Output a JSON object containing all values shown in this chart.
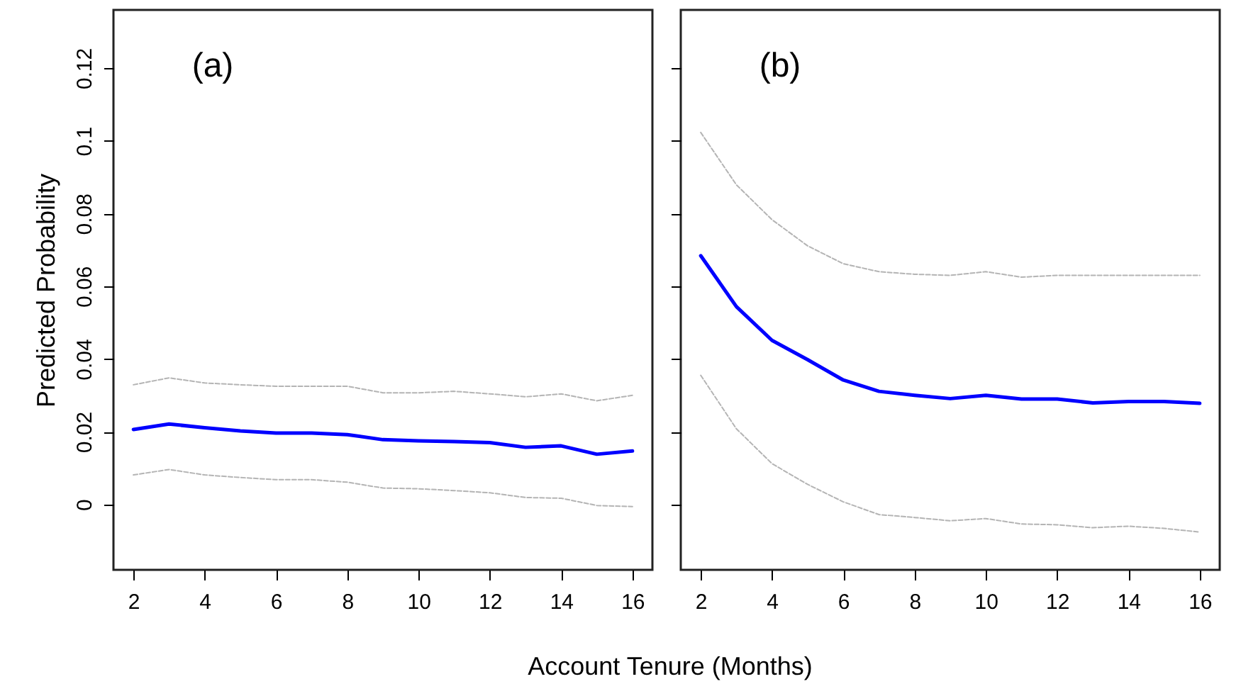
{
  "chart_data": [
    {
      "type": "line",
      "ylabel": "Predicted Probability",
      "xlabel": "Account Tenure (Months)",
      "annotations": [
        "(a)"
      ],
      "x": [
        2,
        3,
        4,
        5,
        6,
        7,
        8,
        9,
        10,
        11,
        12,
        13,
        14,
        15,
        16
      ],
      "xlim": [
        1.44,
        16.56
      ],
      "xticks": [
        2,
        4,
        6,
        8,
        10,
        12,
        14,
        16
      ],
      "ylim": [
        -0.018,
        0.136
      ],
      "yticks": [
        0,
        0.02,
        0.04,
        0.06,
        0.08,
        0.1,
        0.12
      ],
      "grid": false,
      "marker": "none",
      "series": [
        {
          "color": "#0000ff",
          "line_style": "solid",
          "values": [
            0.0206,
            0.0221,
            0.0211,
            0.0202,
            0.0196,
            0.0196,
            0.0192,
            0.0178,
            0.0175,
            0.0173,
            0.017,
            0.0157,
            0.0161,
            0.0138,
            0.0147
          ]
        },
        {
          "color": "#b4b4b4",
          "line_style": "dashed",
          "values": [
            0.0329,
            0.0348,
            0.0334,
            0.0329,
            0.0325,
            0.0325,
            0.0325,
            0.0307,
            0.0307,
            0.0311,
            0.0304,
            0.0296,
            0.0304,
            0.0285,
            0.03
          ]
        },
        {
          "color": "#b4b4b4",
          "line_style": "dashed",
          "values": [
            0.0081,
            0.0096,
            0.0081,
            0.0074,
            0.0068,
            0.0068,
            0.0061,
            0.0045,
            0.0043,
            0.0038,
            0.0032,
            0.0019,
            0.0017,
            -0.0003,
            -0.0006
          ]
        }
      ]
    },
    {
      "type": "line",
      "annotations": [
        "(b)"
      ],
      "x": [
        2,
        3,
        4,
        5,
        6,
        7,
        8,
        9,
        10,
        11,
        12,
        13,
        14,
        15,
        16
      ],
      "xlim": [
        1.44,
        16.56
      ],
      "xticks": [
        2,
        4,
        6,
        8,
        10,
        12,
        14,
        16
      ],
      "ylim": [
        -0.018,
        0.136
      ],
      "yticks": [
        0,
        0.02,
        0.04,
        0.06,
        0.08,
        0.1,
        0.12
      ],
      "tick_labels": "x",
      "grid": false,
      "marker": "none",
      "series": [
        {
          "color": "#0000ff",
          "line_style": "solid",
          "values": [
            0.0684,
            0.0544,
            0.0451,
            0.0398,
            0.0342,
            0.0311,
            0.03,
            0.0291,
            0.03,
            0.029,
            0.029,
            0.0279,
            0.0283,
            0.0283,
            0.0278
          ]
        },
        {
          "color": "#b4b4b4",
          "line_style": "dashed",
          "values": [
            0.1023,
            0.0879,
            0.0783,
            0.0711,
            0.0662,
            0.064,
            0.0633,
            0.063,
            0.064,
            0.0625,
            0.063,
            0.063,
            0.063,
            0.063,
            0.063
          ]
        },
        {
          "color": "#b4b4b4",
          "line_style": "dashed",
          "values": [
            0.0355,
            0.0208,
            0.0112,
            0.0055,
            0.0007,
            -0.0028,
            -0.0036,
            -0.0045,
            -0.0039,
            -0.0054,
            -0.0056,
            -0.0064,
            -0.006,
            -0.0066,
            -0.0076
          ]
        }
      ]
    }
  ]
}
